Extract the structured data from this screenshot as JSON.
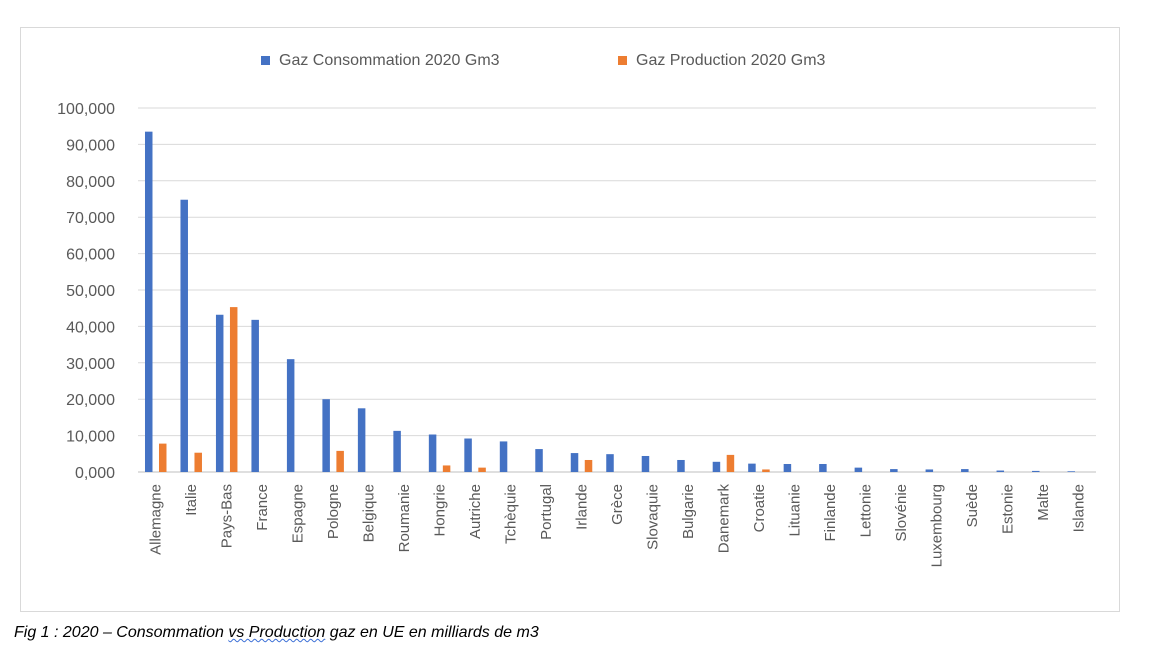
{
  "caption": {
    "before": "Fig 1 : 2020 – Consommation ",
    "underlined": "vs Production",
    "after": " gaz en UE en milliards de m3"
  },
  "chart_data": {
    "type": "bar",
    "title": "",
    "xlabel": "",
    "ylabel": "",
    "ylim": [
      0,
      100000
    ],
    "ytick_labels": [
      "0,000",
      "10,000",
      "20,000",
      "30,000",
      "40,000",
      "50,000",
      "60,000",
      "70,000",
      "80,000",
      "90,000",
      "100,000"
    ],
    "grid": true,
    "legend": "top-center",
    "categories": [
      "Allemagne",
      "Italie",
      "Pays-Bas",
      "France",
      "Espagne",
      "Pologne",
      "Belgique",
      "Roumanie",
      "Hongrie",
      "Autriche",
      "Tchèquie",
      "Portugal",
      "Irlande",
      "Grèce",
      "Slovaquie",
      "Bulgarie",
      "Danemark",
      "Croatie",
      "Lituanie",
      "Finlande",
      "Lettonie",
      "Slovénie",
      "Luxembourg",
      "Suède",
      "Estonie",
      "Malte",
      "Islande"
    ],
    "series": [
      {
        "name": "Gaz Consommation 2020 Gm3",
        "color": "#4472c4",
        "values": [
          93500,
          74800,
          43200,
          41800,
          31000,
          20000,
          17500,
          11300,
          10300,
          9200,
          8400,
          6300,
          5200,
          4900,
          4400,
          3300,
          2800,
          2300,
          2200,
          2200,
          1200,
          800,
          700,
          800,
          400,
          300,
          200
        ]
      },
      {
        "name": "Gaz Production 2020 Gm3",
        "color": "#ed7d31",
        "values": [
          7800,
          5300,
          45300,
          0,
          0,
          5800,
          0,
          0,
          1800,
          1200,
          0,
          0,
          3300,
          0,
          0,
          0,
          4700,
          700,
          0,
          0,
          0,
          0,
          0,
          0,
          0,
          0,
          0
        ]
      }
    ]
  }
}
